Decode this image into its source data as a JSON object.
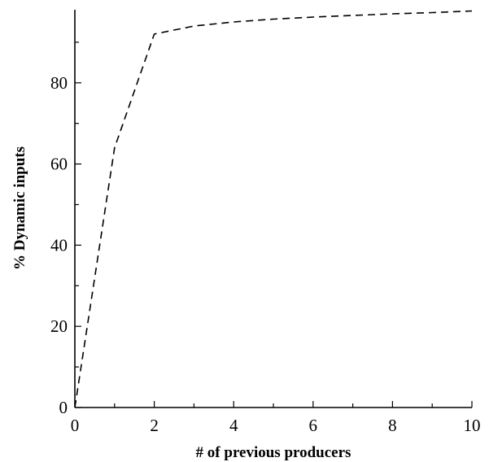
{
  "chart_data": {
    "type": "line",
    "title": "",
    "xlabel": "# of previous producers",
    "ylabel": "% Dynamic inputs",
    "xlim": [
      0,
      10
    ],
    "ylim": [
      0,
      98
    ],
    "x_ticks": [
      0,
      2,
      4,
      6,
      8,
      10
    ],
    "y_ticks": [
      0,
      20,
      40,
      60,
      80
    ],
    "x_minor_ticks": [
      1,
      3,
      5,
      7,
      9
    ],
    "y_minor_ticks": [
      10,
      30,
      50,
      70,
      90
    ],
    "grid": false,
    "series": [
      {
        "style": "dashed",
        "color": "#000000",
        "x": [
          0,
          1,
          2,
          3,
          4,
          5,
          6,
          7,
          8,
          9,
          10
        ],
        "y": [
          0,
          64,
          92,
          94,
          95,
          95.7,
          96.2,
          96.6,
          97,
          97.3,
          97.7
        ]
      }
    ]
  }
}
